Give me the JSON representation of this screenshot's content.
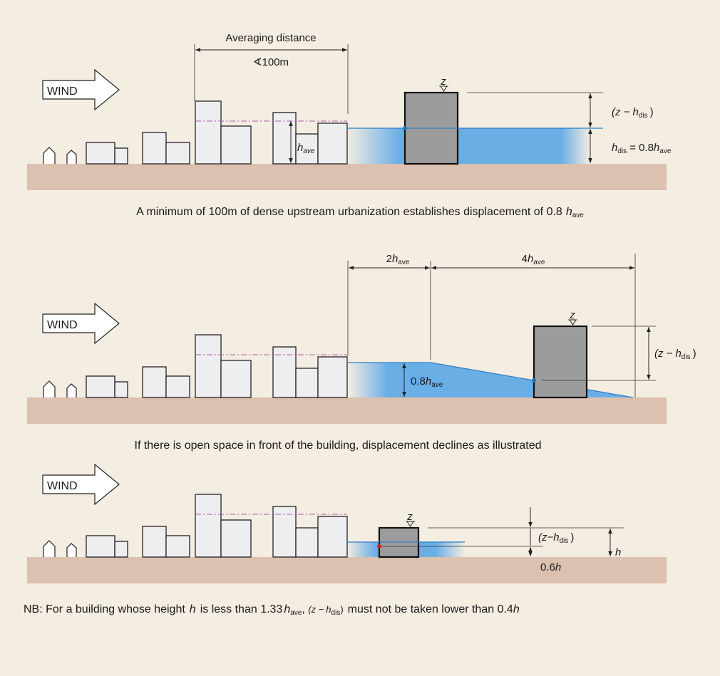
{
  "wind_label": "WIND",
  "panel1": {
    "averaging_distance": "Averaging distance",
    "min_distance": "∢100m",
    "z": "z",
    "z_minus": "(z −",
    "h_dis": "h",
    "dis": "dis",
    "close_paren": ")",
    "h_ave_h": "h",
    "ave": "ave",
    "h_dis_eq": "= 0.8",
    "caption_pre": "A minimum of 100m of dense upstream urbanization establishes displacement of 0.8",
    "caption_h": "h",
    "caption_ave": "ave"
  },
  "panel2": {
    "dist_1": "2",
    "dist_2": "4",
    "height_label": "0.8",
    "z": "z",
    "caption": "If there is open space in front of the building, displacement declines as illustrated"
  },
  "panel3": {
    "z": "z",
    "z_minus_h": "(z−",
    "point_six": "0.6",
    "h": "h",
    "note_pre": "NB: For a building whose height",
    "note_mid": "is less than 1.33",
    "note_post": "must not be taken lower than 0.4"
  },
  "colors": {
    "background": "#f4ede2",
    "ground": "#dcc0b0",
    "displacement": "#6aaee6",
    "building": "#eeeef0",
    "target_building": "#9c9c9c",
    "average_height_line": "#b05aa8"
  }
}
